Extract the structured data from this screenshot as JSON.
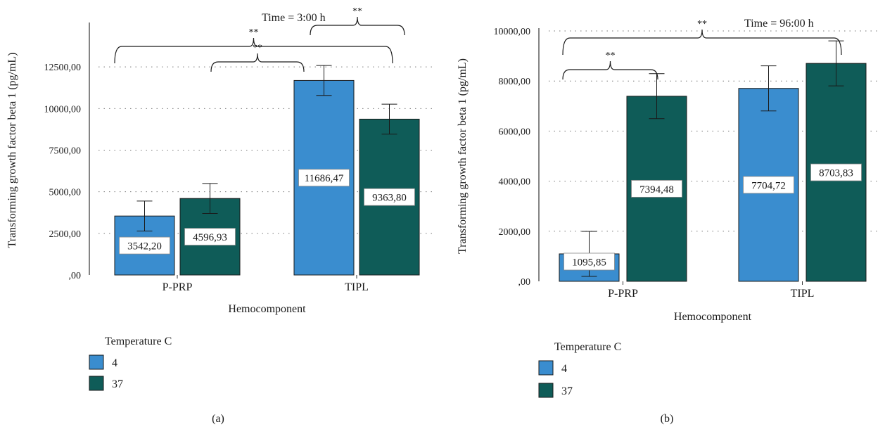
{
  "colors": {
    "c4": "#3a8dcf",
    "c37": "#0f5c58",
    "axis": "#333333",
    "grid": "#777777"
  },
  "chart_data": [
    {
      "type": "bar",
      "panel_label": "(a)",
      "annotation": "Time = 3:00 h",
      "categories": [
        "P-PRP",
        "TIPL"
      ],
      "xlabel": "Hemocomponent",
      "ylabel": "Transforming growth factor beta 1 (pg/mL)",
      "ylim": [
        0,
        15000
      ],
      "yticks": [
        0,
        2500,
        5000,
        7500,
        10000,
        12500
      ],
      "ytick_labels": [
        ",00",
        "2500,00",
        "5000,00",
        "7500,00",
        "10000,00",
        "12500,00"
      ],
      "grid": "horizontal dotted",
      "legend": {
        "title": "Temperature C",
        "position": "bottom-left"
      },
      "series": [
        {
          "name": "4",
          "values": [
            3542.2,
            11686.47
          ],
          "labels": [
            "3542,20",
            "11686,47"
          ],
          "err": [
            900,
            900
          ]
        },
        {
          "name": "37",
          "values": [
            4596.93,
            9363.8
          ],
          "labels": [
            "4596,93",
            "9363,80"
          ],
          "err": [
            900,
            900
          ]
        }
      ],
      "significance": [
        {
          "from": "P-PRP 4",
          "to": "TIPL 37",
          "mark": "**"
        },
        {
          "from": "P-PRP 37",
          "to": "TIPL 4",
          "mark": "**"
        },
        {
          "from": "TIPL 4",
          "to": "TIPL 37",
          "mark": "**"
        }
      ]
    },
    {
      "type": "bar",
      "panel_label": "(b)",
      "annotation": "Time = 96:00 h",
      "categories": [
        "P-PRP",
        "TIPL"
      ],
      "xlabel": "Hemocomponent",
      "ylabel": "Transforming growth factor beta 1 (pg/mL)",
      "ylim": [
        0,
        10000
      ],
      "yticks": [
        0,
        2000,
        4000,
        6000,
        8000,
        10000
      ],
      "ytick_labels": [
        ",00",
        "2000,00",
        "4000,00",
        "6000,00",
        "8000,00",
        "10000,00"
      ],
      "grid": "horizontal dotted",
      "legend": {
        "title": "Temperature C",
        "position": "bottom-left"
      },
      "series": [
        {
          "name": "4",
          "values": [
            1095.85,
            7704.72
          ],
          "labels": [
            "1095,85",
            "7704,72"
          ],
          "err": [
            900,
            900
          ]
        },
        {
          "name": "37",
          "values": [
            7394.48,
            8703.83
          ],
          "labels": [
            "7394,48",
            "8703,83"
          ],
          "err": [
            900,
            900
          ]
        }
      ],
      "significance": [
        {
          "from": "P-PRP 4",
          "to": "TIPL 37",
          "mark": "**"
        },
        {
          "from": "P-PRP 4",
          "to": "P-PRP 37",
          "mark": "**"
        }
      ]
    }
  ]
}
